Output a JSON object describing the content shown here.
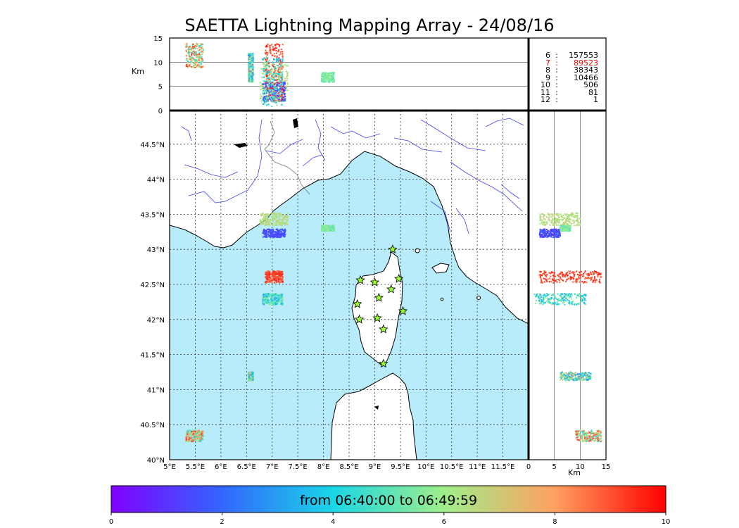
{
  "title": "SAETTA Lightning Mapping Array - 24/08/16",
  "colors": {
    "sea": "#b8ecfb",
    "land": "#ffffff",
    "coast": "#000000",
    "river": "#4040ee",
    "border": "#666666",
    "grid": "#333333",
    "star_fill": "#99ff33"
  },
  "station_icon": "star-icon",
  "chart_data": {
    "type": "scatter",
    "map": {
      "lon_range": [
        5.0,
        12.0
      ],
      "lat_range": [
        40.0,
        44.98
      ],
      "x_ticks": [
        "5°E",
        "5.5°E",
        "6°E",
        "6.5°E",
        "7°E",
        "7.5°E",
        "8°E",
        "8.5°E",
        "9°E",
        "9.5°E",
        "10°E",
        "10.5°E",
        "11°E",
        "11.5°E"
      ],
      "y_ticks": [
        "40°N",
        "40.5°N",
        "41°N",
        "41.5°N",
        "42°N",
        "42.5°N",
        "43°N",
        "43.5°N",
        "44°N",
        "44.5°N"
      ],
      "grid": true
    },
    "altitude_panel": {
      "ylabel": "Km",
      "ylim": [
        0,
        15
      ],
      "y_ticks": [
        "0",
        "5",
        "10",
        "15"
      ]
    },
    "side_panel": {
      "xlabel": "Km",
      "xlim": [
        0,
        15
      ],
      "x_ticks": [
        "0",
        "5",
        "10",
        "15"
      ]
    },
    "stations": [
      {
        "lon": 9.35,
        "lat": 43.0
      },
      {
        "lon": 8.72,
        "lat": 42.56
      },
      {
        "lon": 9.0,
        "lat": 42.53
      },
      {
        "lon": 9.47,
        "lat": 42.58
      },
      {
        "lon": 9.32,
        "lat": 42.43
      },
      {
        "lon": 9.08,
        "lat": 42.31
      },
      {
        "lon": 8.66,
        "lat": 42.22
      },
      {
        "lon": 9.55,
        "lat": 42.12
      },
      {
        "lon": 9.05,
        "lat": 42.02
      },
      {
        "lon": 8.7,
        "lat": 42.0
      },
      {
        "lon": 9.17,
        "lat": 41.86
      },
      {
        "lon": 9.17,
        "lat": 41.37
      }
    ],
    "clusters": [
      {
        "lon": [
          6.75,
          7.3
        ],
        "lat": [
          43.35,
          43.53
        ],
        "alt": [
          2,
          10
        ],
        "time": [
          6,
          7
        ]
      },
      {
        "lon": [
          6.8,
          7.25
        ],
        "lat": [
          43.18,
          43.3
        ],
        "alt": [
          2,
          6
        ],
        "time": [
          1,
          2
        ]
      },
      {
        "lon": [
          6.85,
          7.2
        ],
        "lat": [
          42.53,
          42.7
        ],
        "alt": [
          2,
          14
        ],
        "time": [
          8.5,
          9.8
        ]
      },
      {
        "lon": [
          6.8,
          7.2
        ],
        "lat": [
          42.22,
          42.38
        ],
        "alt": [
          1,
          11
        ],
        "time": [
          3,
          6
        ]
      },
      {
        "lon": [
          6.52,
          6.62
        ],
        "lat": [
          41.14,
          41.26
        ],
        "alt": [
          6,
          12
        ],
        "time": [
          2.5,
          8
        ]
      },
      {
        "lon": [
          5.3,
          5.65
        ],
        "lat": [
          40.27,
          40.43
        ],
        "alt": [
          9,
          14
        ],
        "time": [
          4,
          9.5
        ]
      },
      {
        "lon": [
          7.95,
          8.2
        ],
        "lat": [
          43.27,
          43.35
        ],
        "alt": [
          6,
          8
        ],
        "time": [
          5,
          6
        ]
      }
    ],
    "counts": [
      {
        "k": "6",
        "v": "157553"
      },
      {
        "k": "7",
        "v": "89523",
        "color": "#ff0000"
      },
      {
        "k": "8",
        "v": "38343"
      },
      {
        "k": "9",
        "v": "10466"
      },
      {
        "k": "10",
        "v": "506"
      },
      {
        "k": "11",
        "v": "81"
      },
      {
        "k": "12",
        "v": "1"
      }
    ],
    "colorbar": {
      "label": "from 06:40:00 to 06:49:59",
      "range": [
        0,
        10
      ],
      "ticks": [
        "0",
        "2",
        "4",
        "6",
        "8",
        "10"
      ]
    }
  }
}
